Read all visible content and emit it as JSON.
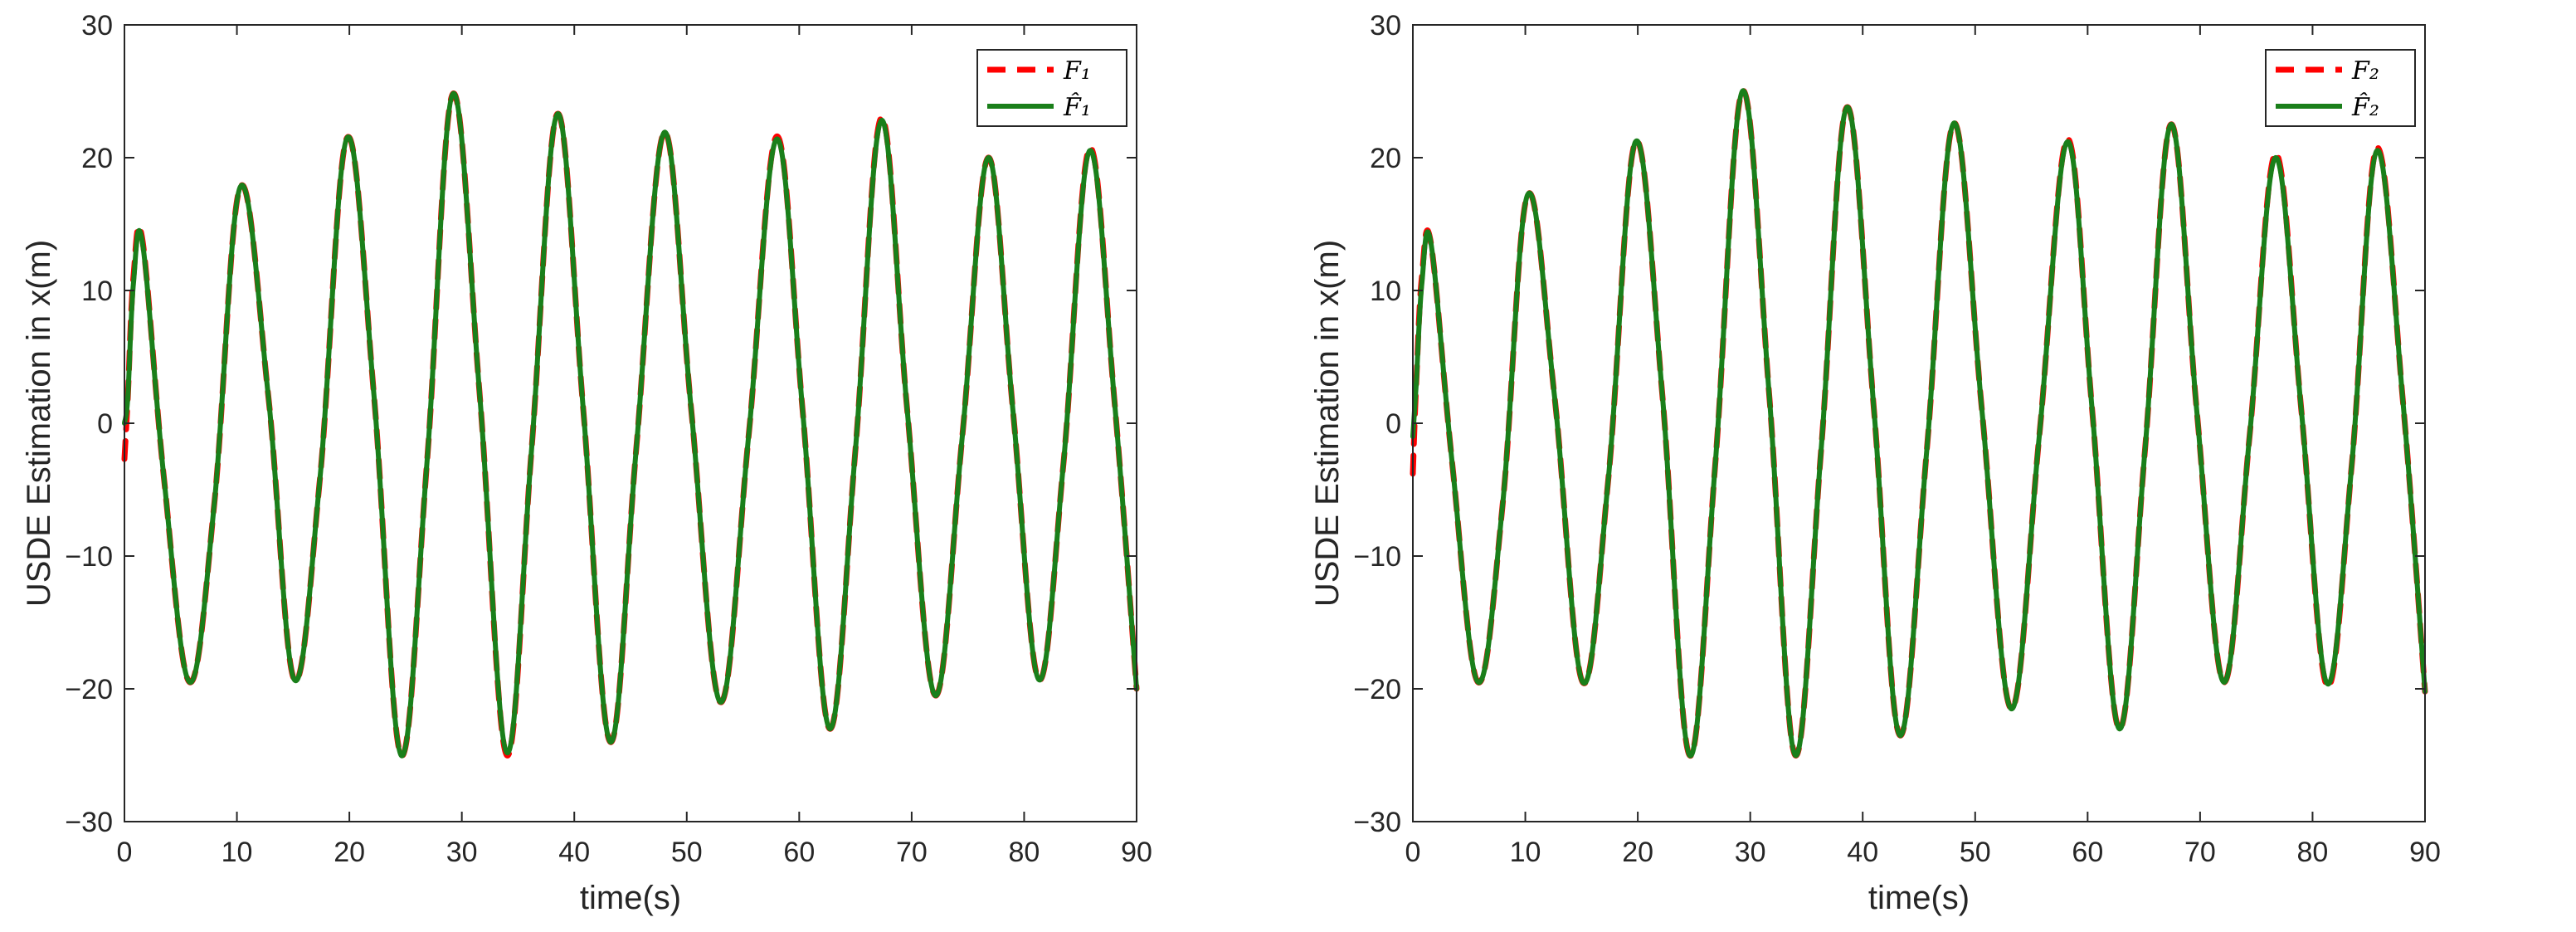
{
  "colors": {
    "measured": "#ff0000",
    "estimated": "#1a7f1a",
    "axis": "#262626"
  },
  "chart_data": [
    {
      "type": "line",
      "xlabel": "time(s)",
      "ylabel": "USDE Estimation in x(m)",
      "xlim": [
        0,
        90
      ],
      "ylim": [
        -30,
        30
      ],
      "xticks": [
        "0",
        "10",
        "20",
        "30",
        "40",
        "50",
        "60",
        "70",
        "80",
        "90"
      ],
      "yticks": [
        "30",
        "20",
        "10",
        "0",
        "−10",
        "−20",
        "−30"
      ],
      "grid": false,
      "legend": "top-right",
      "x": [
        0,
        0.3,
        0.8,
        1.6,
        3.5,
        5.8,
        8.0,
        10.3,
        12.8,
        15.1,
        17.4,
        19.8,
        22.2,
        24.6,
        26.9,
        29.2,
        31.6,
        34.0,
        36.2,
        38.5,
        40.8,
        43.2,
        45.5,
        48.0,
        50.4,
        53.0,
        55.5,
        58.0,
        60.3,
        62.7,
        65.0,
        67.3,
        69.6,
        72.1,
        74.5,
        76.8,
        79.0,
        81.3,
        83.5,
        85.8,
        88.0,
        90.0
      ],
      "series": [
        {
          "name": "F₁",
          "style": "dashed",
          "color": "measured",
          "values": [
            -2.7,
            2.0,
            11.0,
            13.8,
            -4.0,
            -19.5,
            -6.0,
            17.8,
            2.0,
            -19.3,
            -4.0,
            21.5,
            2.0,
            -25.0,
            -3.0,
            24.8,
            2.0,
            -25.0,
            -2.0,
            23.3,
            1.0,
            -24.0,
            -2.0,
            21.9,
            1.0,
            -21.0,
            -1.0,
            21.6,
            1.0,
            -23.0,
            -2.0,
            23.0,
            1.0,
            -20.5,
            -1.0,
            20.0,
            1.0,
            -19.3,
            -3.0,
            20.7,
            2.0,
            -20.0
          ]
        },
        {
          "name": "F̂₁",
          "style": "solid",
          "color": "estimated",
          "values": [
            0.0,
            2.0,
            10.5,
            13.6,
            -4.0,
            -19.5,
            -6.0,
            17.8,
            2.0,
            -19.3,
            -4.0,
            21.5,
            2.0,
            -25.0,
            -3.0,
            24.8,
            2.0,
            -24.8,
            -2.0,
            23.3,
            1.0,
            -24.0,
            -2.0,
            21.9,
            1.0,
            -21.0,
            -1.0,
            21.4,
            1.0,
            -23.0,
            -2.0,
            22.8,
            1.0,
            -20.5,
            -1.0,
            20.0,
            1.0,
            -19.3,
            -3.0,
            20.5,
            2.0,
            -20.0
          ]
        }
      ]
    },
    {
      "type": "line",
      "xlabel": "time(s)",
      "ylabel": "USDE Estimation in x(m)",
      "xlim": [
        0,
        90
      ],
      "ylim": [
        -30,
        30
      ],
      "xticks": [
        "0",
        "10",
        "20",
        "30",
        "40",
        "50",
        "60",
        "70",
        "80",
        "90"
      ],
      "yticks": [
        "30",
        "20",
        "10",
        "0",
        "−10",
        "−20",
        "−30"
      ],
      "grid": false,
      "legend": "top-right",
      "x": [
        0,
        0.3,
        0.8,
        1.6,
        3.5,
        5.8,
        8.0,
        10.2,
        12.6,
        15.1,
        17.4,
        19.8,
        22.2,
        24.6,
        26.9,
        29.3,
        31.7,
        34.0,
        36.3,
        38.6,
        41.0,
        43.3,
        45.7,
        48.1,
        50.6,
        53.2,
        55.7,
        58.2,
        60.4,
        62.8,
        65.1,
        67.4,
        69.7,
        72.1,
        74.4,
        76.7,
        79.0,
        81.3,
        83.5,
        85.7,
        88.0,
        90.0
      ],
      "series": [
        {
          "name": "F₂",
          "style": "dashed",
          "color": "measured",
          "values": [
            -3.8,
            3.0,
            11.0,
            13.6,
            -3.0,
            -19.5,
            -6.0,
            17.2,
            2.0,
            -19.5,
            -4.0,
            21.2,
            2.0,
            -25.0,
            -3.0,
            25.0,
            2.0,
            -25.0,
            -2.0,
            23.8,
            1.0,
            -23.5,
            -2.0,
            22.6,
            1.0,
            -21.5,
            -1.0,
            21.4,
            1.0,
            -23.0,
            -2.0,
            22.5,
            1.0,
            -19.5,
            -1.0,
            20.3,
            1.0,
            -19.8,
            -3.0,
            20.7,
            2.0,
            -20.2
          ]
        },
        {
          "name": "F̂₂",
          "style": "solid",
          "color": "estimated",
          "values": [
            -1.0,
            3.0,
            10.5,
            13.6,
            -3.0,
            -19.5,
            -6.0,
            17.2,
            2.0,
            -19.5,
            -4.0,
            21.2,
            2.0,
            -25.0,
            -3.0,
            25.0,
            2.0,
            -25.0,
            -2.0,
            23.8,
            1.0,
            -23.5,
            -2.0,
            22.6,
            1.0,
            -21.5,
            -1.0,
            21.2,
            1.0,
            -23.0,
            -2.0,
            22.5,
            1.0,
            -19.5,
            -1.0,
            20.0,
            1.0,
            -19.6,
            -3.0,
            20.5,
            2.0,
            -20.2
          ]
        }
      ]
    }
  ]
}
